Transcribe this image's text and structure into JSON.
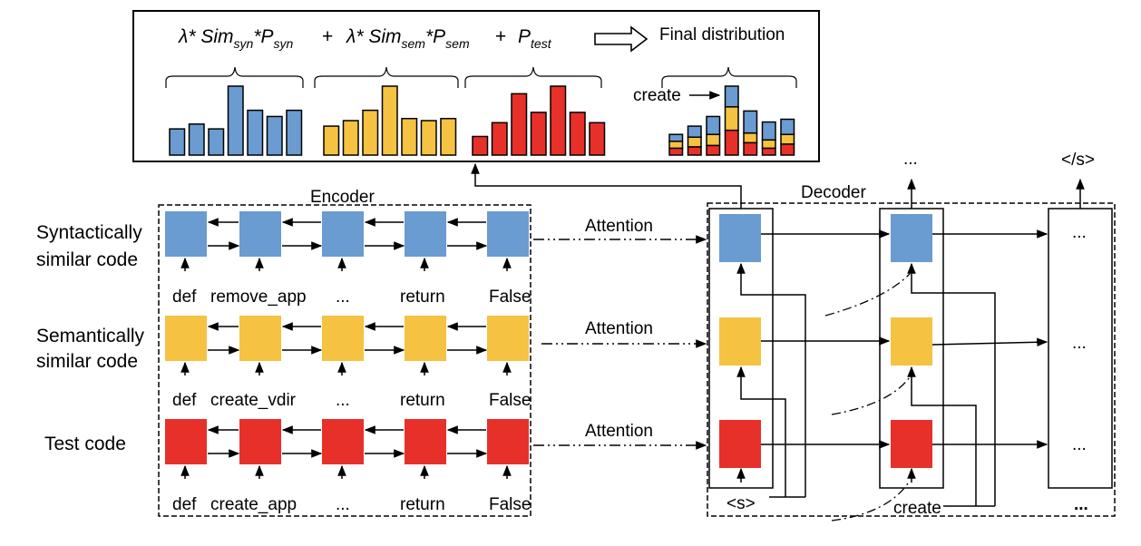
{
  "colors": {
    "syntactic": "#6a9bd1",
    "semantic": "#f5c242",
    "test": "#e8302a",
    "stroke": "#000000"
  },
  "formula": {
    "lambda1": "λ* Sim",
    "sub_syn1": "syn",
    "p_syn": "*P",
    "sub_syn2": "syn",
    "plus1": "+",
    "lambda2": "λ* Sim",
    "sub_sem1": "sem",
    "p_sem": "*P",
    "sub_sem2": "sem",
    "plus2": "+",
    "p_test": "P",
    "sub_test": "test",
    "final": "Final distribution",
    "create_pointer": "create"
  },
  "distributions": {
    "syntactic": [
      0.38,
      0.45,
      0.38,
      1.0,
      0.65,
      0.56,
      0.65
    ],
    "semantic": [
      0.42,
      0.5,
      0.65,
      1.0,
      0.53,
      0.5,
      0.53
    ],
    "test": [
      0.27,
      0.47,
      0.89,
      0.62,
      1.0,
      0.62,
      0.47
    ],
    "final_stacks": [
      [
        0.1,
        0.1,
        0.1
      ],
      [
        0.16,
        0.14,
        0.12
      ],
      [
        0.26,
        0.16,
        0.14
      ],
      [
        0.3,
        0.34,
        0.36
      ],
      [
        0.32,
        0.14,
        0.18
      ],
      [
        0.26,
        0.12,
        0.1
      ],
      [
        0.22,
        0.14,
        0.16
      ]
    ]
  },
  "encoder": {
    "title": "Encoder",
    "rows": [
      {
        "label_line1": "Syntactically",
        "label_line2": "similar code",
        "tokens": [
          "def",
          "remove_app",
          "...",
          "return",
          "False"
        ]
      },
      {
        "label_line1": "Semantically",
        "label_line2": "similar code",
        "tokens": [
          "def",
          "create_vdir",
          "...",
          "return",
          "False"
        ]
      },
      {
        "label_line1": "Test code",
        "label_line2": "",
        "tokens": [
          "def",
          "create_app",
          "...",
          "return",
          "False"
        ]
      }
    ]
  },
  "attention_label": "Attention",
  "decoder": {
    "title": "Decoder",
    "inputs": [
      "<s>",
      "create",
      "..."
    ],
    "outputs": [
      "...",
      "</s>"
    ],
    "ellipsis": "..."
  }
}
